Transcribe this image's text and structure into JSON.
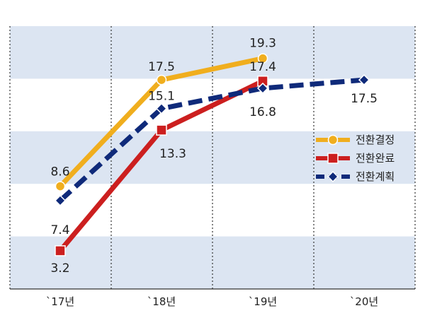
{
  "chart_data": {
    "type": "line",
    "categories": [
      "`17년",
      "`18년",
      "`19년",
      "`20년"
    ],
    "series": [
      {
        "name": "전환결정",
        "values": [
          8.6,
          17.5,
          19.3,
          null
        ],
        "color": "#f0ae1e",
        "marker": "circle",
        "dash": "solid"
      },
      {
        "name": "전환완료",
        "values": [
          3.2,
          13.3,
          17.4,
          null
        ],
        "color": "#cc1f1f",
        "marker": "square",
        "dash": "solid"
      },
      {
        "name": "전환계획",
        "values": [
          7.4,
          15.1,
          16.8,
          17.5
        ],
        "color": "#0f2a7a",
        "marker": "diamond",
        "dash": "dashed"
      }
    ],
    "ylim": [
      0,
      22
    ],
    "grid": "banded",
    "band_color": "#dce5f2",
    "legend_position": "right"
  }
}
